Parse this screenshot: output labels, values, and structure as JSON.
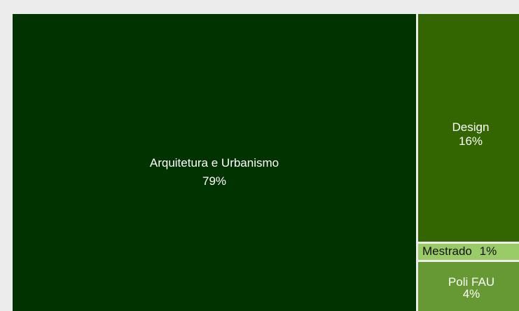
{
  "chart_data": {
    "type": "treemap",
    "title": "",
    "items": [
      {
        "name": "Arquitetura e Urbanismo",
        "value_label": "79%",
        "value": 79,
        "color": "#003300"
      },
      {
        "name": "Design",
        "value_label": "16%",
        "value": 16,
        "color": "#336600"
      },
      {
        "name": "Mestrado",
        "value_label": "1%",
        "value": 1,
        "color": "#99cc66"
      },
      {
        "name": "Poli FAU",
        "value_label": "4%",
        "value": 4,
        "color": "#669933"
      }
    ]
  }
}
